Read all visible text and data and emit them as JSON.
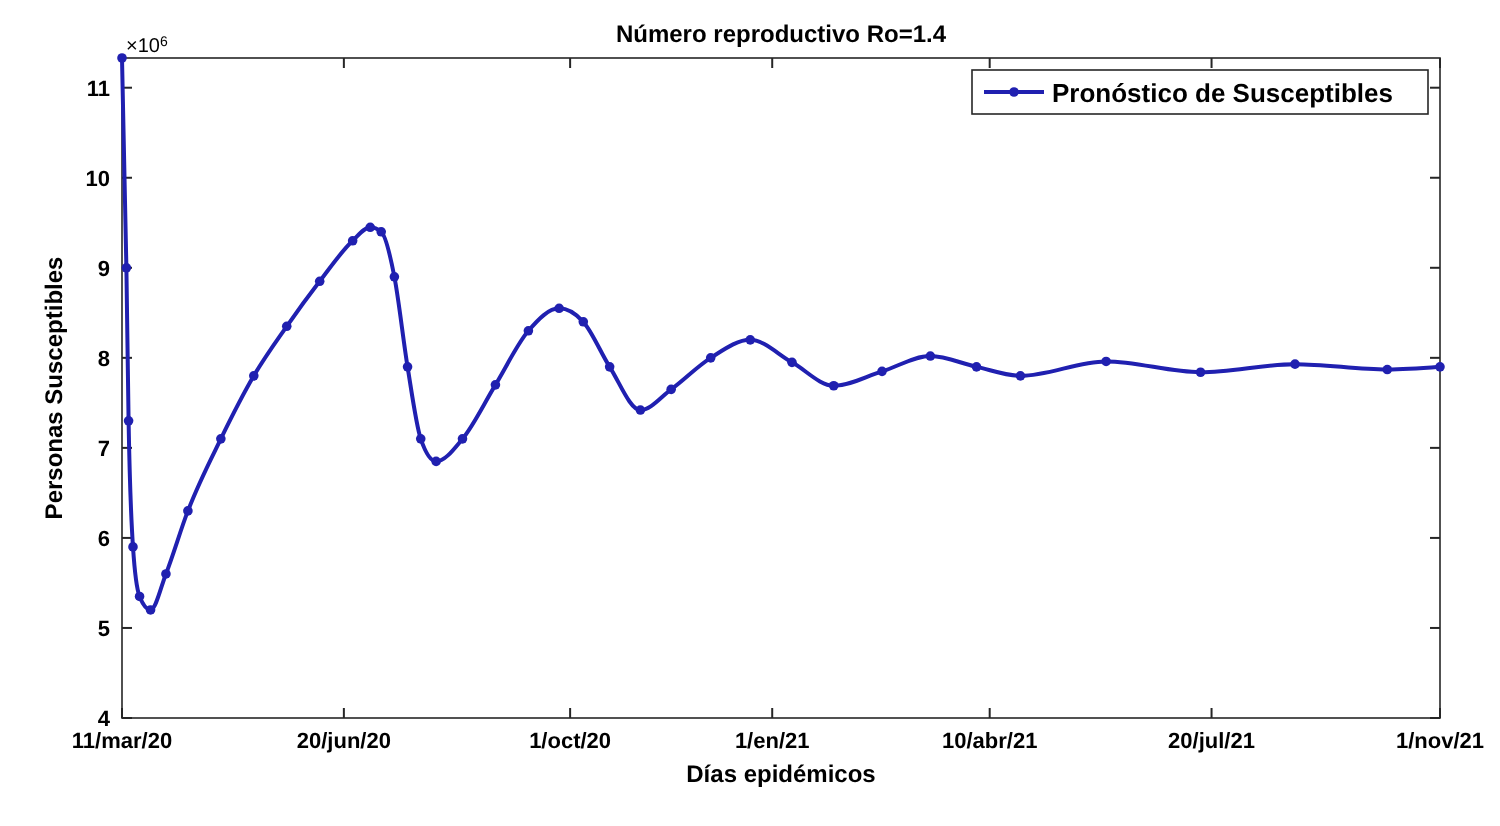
{
  "chart_data": {
    "type": "line",
    "title": "Número reproductivo Ro=1.4",
    "xlabel": "Días epidémicos",
    "ylabel": "Personas Susceptibles",
    "annotations": [
      "×10$^{6}$"
    ],
    "x": [
      "2020-03-11",
      "2020-03-13",
      "2020-03-14",
      "2020-03-16",
      "2020-03-19",
      "2020-03-24",
      "2020-03-31",
      "2020-04-10",
      "2020-04-25",
      "2020-05-10",
      "2020-05-25",
      "2020-06-09",
      "2020-06-24",
      "2020-07-02",
      "2020-07-07",
      "2020-07-13",
      "2020-07-19",
      "2020-07-25",
      "2020-08-01",
      "2020-08-13",
      "2020-08-28",
      "2020-09-12",
      "2020-09-26",
      "2020-10-07",
      "2020-10-19",
      "2020-11-02",
      "2020-11-16",
      "2020-12-04",
      "2020-12-22",
      "2021-01-10",
      "2021-01-29",
      "2021-02-20",
      "2021-03-14",
      "2021-04-04",
      "2021-04-24",
      "2021-06-02",
      "2021-07-15",
      "2021-08-27",
      "2021-10-08",
      "2021-11-01"
    ],
    "series": [
      {
        "name": "Pronóstico de Susceptibles",
        "color": "#2020b0",
        "values": [
          11.33,
          9.0,
          7.3,
          5.9,
          5.35,
          5.2,
          5.6,
          6.3,
          7.1,
          7.8,
          8.35,
          8.85,
          9.3,
          9.45,
          9.4,
          8.9,
          7.9,
          7.1,
          6.85,
          7.1,
          7.7,
          8.3,
          8.55,
          8.4,
          7.9,
          7.42,
          7.65,
          8.0,
          8.2,
          7.95,
          7.69,
          7.85,
          8.02,
          7.9,
          7.8,
          7.96,
          7.84,
          7.93,
          7.87,
          7.9
        ]
      }
    ],
    "xlim": [
      "2020-03-11",
      "2021-11-01"
    ],
    "xticks": [
      {
        "value": "2020-03-11",
        "label": "11/mar/20"
      },
      {
        "value": "2020-06-20",
        "label": "20/jun/20"
      },
      {
        "value": "2020-10-01",
        "label": "1/oct/20"
      },
      {
        "value": "2021-01-01",
        "label": "1/en/21"
      },
      {
        "value": "2021-04-10",
        "label": "10/abr/21"
      },
      {
        "value": "2021-07-20",
        "label": "20/jul/21"
      },
      {
        "value": "2021-11-01",
        "label": "1/nov/21"
      }
    ],
    "ylim": [
      4,
      11.33
    ],
    "yticks": [
      4,
      5,
      6,
      7,
      8,
      9,
      10,
      11
    ],
    "legend": "top right",
    "marker": "circle",
    "line_style": "solid"
  }
}
